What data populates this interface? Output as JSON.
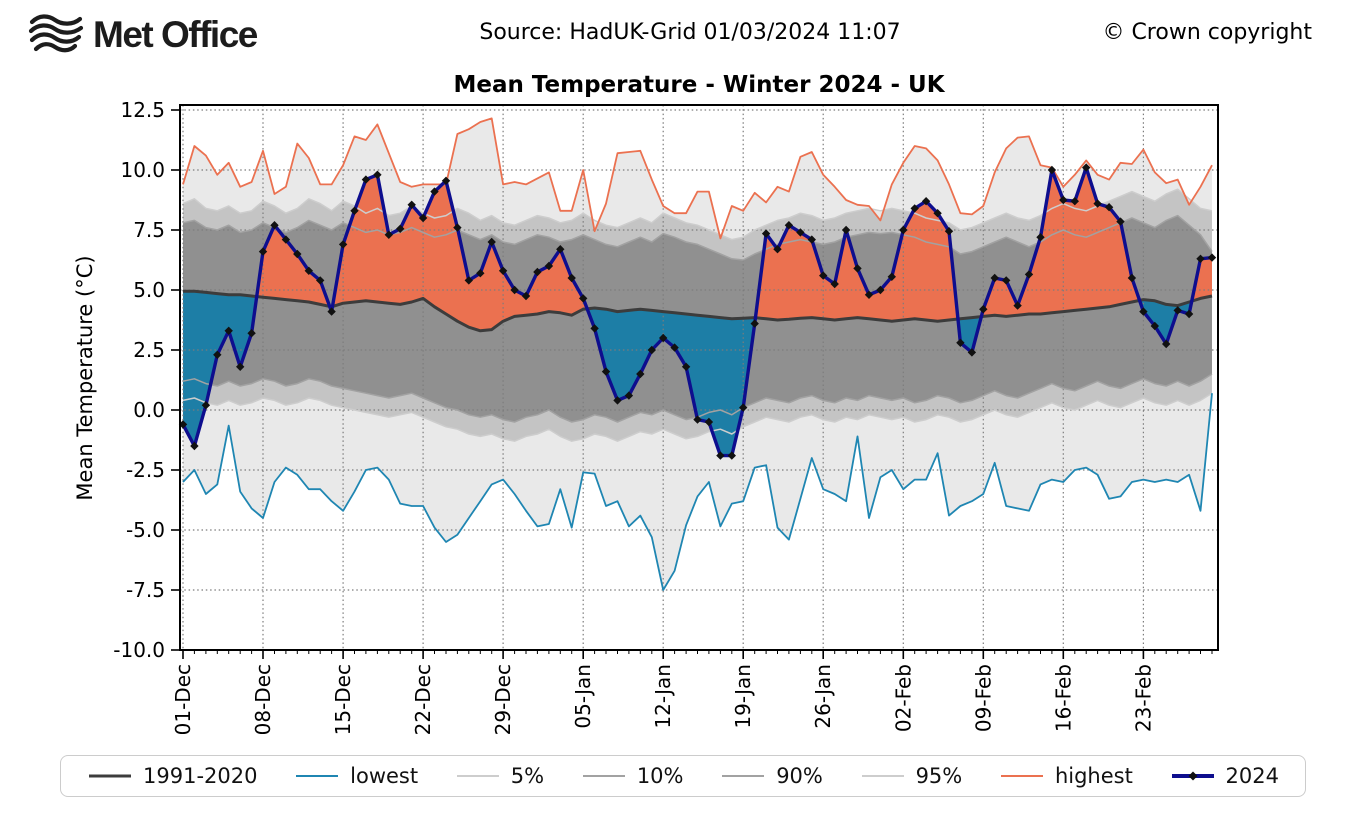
{
  "header": {
    "logo_text": "Met Office",
    "source": "Source: HadUK-Grid 01/03/2024 11:07",
    "copyright": "© Crown copyright"
  },
  "legend": {
    "items": [
      {
        "label": "1991-2020",
        "color": "#3c3c3c",
        "width": 3,
        "marker": false
      },
      {
        "label": "lowest",
        "color": "#1f86b2",
        "width": 2,
        "marker": false
      },
      {
        "label": "5%",
        "color": "#cdcdcd",
        "width": 2,
        "marker": false
      },
      {
        "label": "10%",
        "color": "#a2a2a2",
        "width": 2,
        "marker": false
      },
      {
        "label": "90%",
        "color": "#a2a2a2",
        "width": 2,
        "marker": false
      },
      {
        "label": "95%",
        "color": "#cdcdcd",
        "width": 2,
        "marker": false
      },
      {
        "label": "highest",
        "color": "#eb7150",
        "width": 2,
        "marker": false
      },
      {
        "label": "2024",
        "color": "#0e0e8e",
        "width": 4,
        "marker": true
      }
    ]
  },
  "chart_data": {
    "type": "line",
    "title": "Mean Temperature - Winter 2024 - UK",
    "ylabel": "Mean Temperature (°C)",
    "ylim": [
      -10.0,
      12.5
    ],
    "y_ticks": [
      -10.0,
      -7.5,
      -5.0,
      -2.5,
      0.0,
      2.5,
      5.0,
      7.5,
      10.0,
      12.5
    ],
    "x_tick_labels": [
      "01-Dec",
      "08-Dec",
      "15-Dec",
      "22-Dec",
      "29-Dec",
      "05-Jan",
      "12-Jan",
      "19-Jan",
      "26-Jan",
      "02-Feb",
      "09-Feb",
      "16-Feb",
      "23-Feb"
    ],
    "x_tick_days": [
      0,
      7,
      14,
      21,
      28,
      35,
      42,
      49,
      56,
      63,
      70,
      77,
      84
    ],
    "n_days": 91,
    "grid": true,
    "legend_position": "bottom",
    "colors": {
      "band_light": "#e9e9e9",
      "band_medium": "#c4c4c4",
      "band_dark": "#909090",
      "above_normal_fill": "#eb7150",
      "below_normal_fill": "#1d7ea6",
      "frame": "#000000"
    },
    "bands": [
      {
        "lo": "lowest",
        "hi": "5%",
        "color": "#e9e9e9"
      },
      {
        "lo": "5%",
        "hi": "10%",
        "color": "#c4c4c4"
      },
      {
        "lo": "10%",
        "hi": "90%",
        "color": "#909090"
      },
      {
        "lo": "90%",
        "hi": "95%",
        "color": "#c4c4c4"
      },
      {
        "lo": "95%",
        "hi": "highest",
        "color": "#e9e9e9"
      }
    ],
    "anomaly_fill": {
      "series": "2024",
      "baseline": "1991-2020",
      "above_color": "#eb7150",
      "below_color": "#1d7ea6"
    },
    "series": [
      {
        "name": "1991-2020",
        "color": "#3c3c3c",
        "width": 3,
        "values": [
          4.95,
          4.95,
          4.9,
          4.85,
          4.8,
          4.8,
          4.75,
          4.7,
          4.65,
          4.6,
          4.55,
          4.5,
          4.4,
          4.3,
          4.45,
          4.5,
          4.55,
          4.5,
          4.45,
          4.4,
          4.5,
          4.65,
          4.3,
          4.0,
          3.7,
          3.45,
          3.3,
          3.35,
          3.7,
          3.9,
          3.95,
          4.0,
          4.1,
          4.05,
          3.95,
          4.2,
          4.25,
          4.2,
          4.1,
          4.15,
          4.2,
          4.15,
          4.1,
          4.05,
          4.0,
          3.95,
          3.9,
          3.85,
          3.8,
          3.82,
          3.85,
          3.8,
          3.75,
          3.78,
          3.82,
          3.85,
          3.8,
          3.75,
          3.8,
          3.85,
          3.8,
          3.75,
          3.7,
          3.75,
          3.8,
          3.75,
          3.7,
          3.75,
          3.8,
          3.85,
          3.9,
          3.95,
          3.9,
          3.95,
          4.0,
          4.0,
          4.05,
          4.1,
          4.15,
          4.2,
          4.25,
          4.3,
          4.4,
          4.5,
          4.6,
          4.55,
          4.4,
          4.35,
          4.5,
          4.65,
          4.75
        ]
      },
      {
        "name": "lowest",
        "color": "#1f86b2",
        "width": 1.8,
        "values": [
          -3.0,
          -2.5,
          -3.5,
          -3.1,
          -0.65,
          -3.4,
          -4.1,
          -4.5,
          -3.0,
          -2.4,
          -2.7,
          -3.3,
          -3.3,
          -3.8,
          -4.2,
          -3.4,
          -2.5,
          -2.4,
          -2.9,
          -3.9,
          -4.0,
          -4.0,
          -4.9,
          -5.5,
          -5.2,
          -4.5,
          -3.8,
          -3.1,
          -2.9,
          -3.5,
          -4.2,
          -4.85,
          -4.75,
          -3.3,
          -4.9,
          -2.6,
          -2.65,
          -4.0,
          -3.8,
          -4.85,
          -4.4,
          -5.3,
          -7.5,
          -6.7,
          -4.8,
          -3.6,
          -3.0,
          -4.85,
          -3.9,
          -3.8,
          -2.4,
          -2.3,
          -4.9,
          -5.4,
          -3.7,
          -2.0,
          -3.3,
          -3.5,
          -3.8,
          -1.1,
          -4.5,
          -2.8,
          -2.5,
          -3.3,
          -2.9,
          -2.9,
          -1.8,
          -4.4,
          -4.0,
          -3.8,
          -3.5,
          -2.2,
          -4.0,
          -4.1,
          -4.2,
          -3.1,
          -2.9,
          -3.0,
          -2.5,
          -2.4,
          -2.7,
          -3.7,
          -3.6,
          -3.0,
          -2.9,
          -3.0,
          -2.9,
          -3.0,
          -2.7,
          -4.2,
          0.7
        ]
      },
      {
        "name": "5%",
        "color": "#cdcdcd",
        "width": 1.5,
        "values": [
          0.4,
          0.5,
          0.3,
          0.2,
          0.4,
          0.2,
          0.3,
          0.5,
          0.4,
          0.2,
          0.3,
          0.5,
          0.4,
          0.2,
          0.1,
          0.0,
          -0.1,
          -0.2,
          -0.3,
          -0.2,
          -0.1,
          -0.3,
          -0.5,
          -0.7,
          -0.8,
          -1.0,
          -1.1,
          -1.0,
          -1.2,
          -1.3,
          -1.1,
          -1.0,
          -0.8,
          -1.1,
          -1.3,
          -1.2,
          -1.0,
          -1.1,
          -1.3,
          -1.1,
          -0.9,
          -1.0,
          -0.8,
          -1.0,
          -1.2,
          -1.1,
          -0.9,
          -0.8,
          -1.0,
          -0.7,
          -0.5,
          -0.3,
          -0.4,
          -0.5,
          -0.3,
          -0.2,
          -0.4,
          -0.5,
          -0.3,
          -0.4,
          -0.2,
          -0.3,
          -0.4,
          -0.3,
          -0.5,
          -0.4,
          -0.2,
          -0.3,
          -0.5,
          -0.4,
          -0.2,
          0.0,
          -0.2,
          -0.3,
          -0.1,
          0.1,
          0.3,
          0.1,
          0.0,
          0.2,
          0.4,
          0.2,
          0.1,
          0.3,
          0.5,
          0.3,
          0.2,
          0.4,
          0.2,
          0.4,
          0.7
        ]
      },
      {
        "name": "10%",
        "color": "#a2a2a2",
        "width": 1.5,
        "values": [
          1.2,
          1.3,
          1.1,
          1.0,
          1.2,
          1.0,
          1.1,
          1.3,
          1.2,
          1.0,
          1.1,
          1.3,
          1.2,
          1.0,
          0.9,
          0.8,
          0.7,
          0.6,
          0.5,
          0.6,
          0.7,
          0.5,
          0.3,
          0.1,
          0.0,
          -0.2,
          -0.3,
          -0.2,
          -0.4,
          -0.5,
          -0.3,
          -0.2,
          0.0,
          -0.3,
          -0.5,
          -0.4,
          -0.2,
          -0.3,
          -0.5,
          -0.3,
          -0.1,
          -0.2,
          0.0,
          -0.2,
          -0.4,
          -0.3,
          -0.1,
          0.0,
          -0.2,
          0.1,
          0.3,
          0.5,
          0.4,
          0.3,
          0.5,
          0.6,
          0.4,
          0.3,
          0.5,
          0.4,
          0.6,
          0.5,
          0.4,
          0.5,
          0.3,
          0.4,
          0.6,
          0.5,
          0.3,
          0.4,
          0.6,
          0.8,
          0.6,
          0.5,
          0.7,
          0.9,
          1.1,
          0.9,
          0.8,
          1.0,
          1.2,
          1.0,
          0.9,
          1.1,
          1.3,
          1.1,
          1.0,
          1.2,
          1.0,
          1.2,
          1.5
        ]
      },
      {
        "name": "90%",
        "color": "#a2a2a2",
        "width": 1.5,
        "values": [
          7.8,
          7.9,
          7.6,
          7.5,
          7.7,
          7.4,
          7.5,
          7.8,
          7.6,
          7.4,
          7.6,
          7.9,
          7.7,
          7.5,
          7.8,
          7.6,
          7.4,
          7.5,
          7.3,
          7.4,
          7.6,
          7.4,
          7.2,
          7.3,
          7.5,
          7.3,
          7.1,
          7.3,
          7.0,
          6.9,
          7.1,
          7.3,
          7.2,
          7.0,
          7.1,
          7.3,
          7.1,
          6.9,
          6.8,
          7.0,
          7.2,
          7.0,
          7.35,
          7.2,
          7.0,
          6.9,
          6.7,
          6.5,
          6.3,
          6.25,
          6.5,
          6.7,
          6.9,
          7.0,
          7.1,
          7.0,
          6.9,
          7.0,
          7.2,
          7.3,
          7.4,
          7.35,
          7.4,
          7.3,
          7.2,
          7.0,
          6.9,
          6.8,
          6.5,
          6.6,
          6.8,
          7.0,
          7.2,
          7.0,
          6.8,
          7.0,
          7.3,
          7.5,
          7.3,
          7.2,
          7.4,
          7.6,
          7.8,
          8.0,
          7.8,
          7.6,
          7.9,
          8.1,
          7.7,
          7.3,
          6.6
        ]
      },
      {
        "name": "95%",
        "color": "#cdcdcd",
        "width": 1.5,
        "values": [
          8.6,
          8.8,
          8.4,
          8.3,
          8.5,
          8.2,
          8.3,
          8.7,
          8.5,
          8.2,
          8.4,
          8.8,
          8.6,
          8.3,
          8.7,
          8.5,
          8.2,
          8.4,
          8.1,
          8.2,
          8.5,
          8.2,
          8.0,
          8.1,
          8.4,
          8.2,
          7.9,
          8.1,
          7.8,
          7.7,
          7.9,
          8.1,
          8.0,
          7.8,
          7.9,
          8.2,
          7.9,
          7.7,
          7.6,
          7.8,
          8.0,
          7.8,
          8.2,
          8.0,
          7.8,
          7.7,
          7.5,
          7.3,
          7.1,
          7.2,
          7.5,
          7.7,
          7.9,
          8.0,
          8.2,
          8.1,
          7.9,
          8.0,
          8.2,
          8.3,
          8.4,
          8.3,
          8.4,
          8.3,
          8.2,
          8.0,
          7.9,
          7.8,
          7.5,
          7.6,
          7.8,
          8.0,
          8.2,
          8.0,
          7.9,
          8.1,
          8.4,
          8.6,
          8.4,
          8.3,
          8.5,
          8.7,
          8.9,
          9.1,
          8.9,
          8.7,
          9.0,
          9.2,
          8.8,
          8.4,
          8.3
        ]
      },
      {
        "name": "highest",
        "color": "#eb7150",
        "width": 1.8,
        "values": [
          9.4,
          11.0,
          10.6,
          9.8,
          10.3,
          9.3,
          9.5,
          10.8,
          9.0,
          9.3,
          11.1,
          10.5,
          9.4,
          9.4,
          10.2,
          11.4,
          11.25,
          11.9,
          10.7,
          9.5,
          9.3,
          9.4,
          9.4,
          9.4,
          11.5,
          11.7,
          12.0,
          12.15,
          9.4,
          9.5,
          9.4,
          9.65,
          9.9,
          8.3,
          8.3,
          10.0,
          7.45,
          8.6,
          10.7,
          10.75,
          10.8,
          9.6,
          8.5,
          8.2,
          8.2,
          9.1,
          9.1,
          7.15,
          8.5,
          8.3,
          9.05,
          8.65,
          9.3,
          9.1,
          10.55,
          10.75,
          9.8,
          9.3,
          8.75,
          8.55,
          8.5,
          7.9,
          9.4,
          10.3,
          11.0,
          10.9,
          10.4,
          9.4,
          8.2,
          8.15,
          8.5,
          9.9,
          10.9,
          11.35,
          11.4,
          10.2,
          10.1,
          9.3,
          9.8,
          10.4,
          9.8,
          9.6,
          10.3,
          10.25,
          10.85,
          9.9,
          9.45,
          9.6,
          8.55,
          9.3,
          10.2
        ]
      },
      {
        "name": "2024",
        "color": "#0e0e8e",
        "width": 3.4,
        "marker": "diamond",
        "marker_color": "#111111",
        "values": [
          -0.6,
          -1.5,
          0.2,
          2.3,
          3.3,
          1.8,
          3.2,
          6.6,
          7.7,
          7.1,
          6.5,
          5.8,
          5.4,
          4.1,
          6.9,
          8.3,
          9.6,
          9.8,
          7.3,
          7.55,
          8.55,
          8.0,
          9.1,
          9.55,
          7.6,
          5.4,
          5.7,
          7.0,
          5.8,
          5.0,
          4.75,
          5.75,
          6.0,
          6.7,
          5.5,
          4.65,
          3.4,
          1.6,
          0.4,
          0.6,
          1.5,
          2.5,
          3.0,
          2.6,
          1.8,
          -0.4,
          -0.5,
          -1.9,
          -1.9,
          0.1,
          3.6,
          7.35,
          6.7,
          7.7,
          7.4,
          7.1,
          5.6,
          5.25,
          7.5,
          5.9,
          4.8,
          5.0,
          5.55,
          7.5,
          8.4,
          8.7,
          8.2,
          7.45,
          2.8,
          2.4,
          4.2,
          5.5,
          5.4,
          4.35,
          5.65,
          7.2,
          10.0,
          8.75,
          8.7,
          10.1,
          8.6,
          8.45,
          7.85,
          5.5,
          4.1,
          3.5,
          2.75,
          4.15,
          4.0,
          6.3,
          6.35
        ]
      }
    ]
  }
}
